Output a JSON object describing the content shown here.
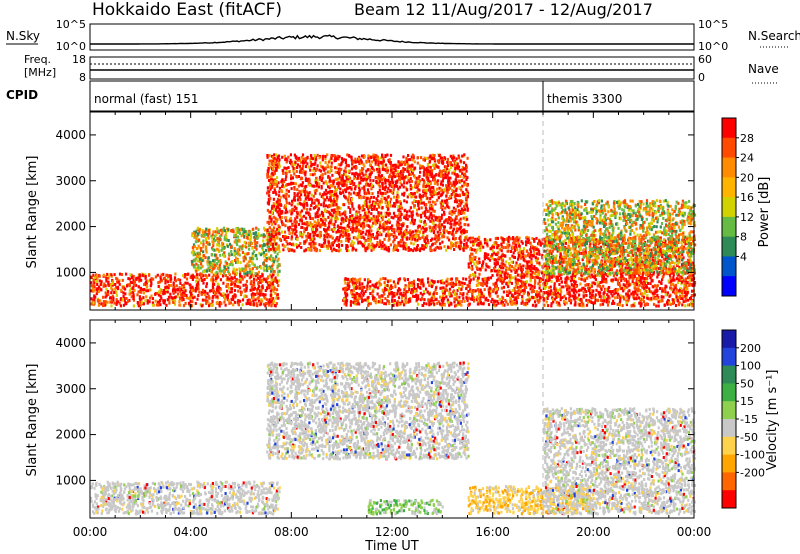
{
  "header": {
    "station": "Hokkaido East (fitACF)",
    "beam_info": "Beam 12 11/Aug/2017 - 12/Aug/2017"
  },
  "noise_panel": {
    "left_label": "N.Sky",
    "right_label": "N.Search",
    "left_ticks": [
      "10^5",
      "10^0"
    ],
    "right_ticks": [
      "10^5",
      "10^0"
    ]
  },
  "freq_panel": {
    "left_label_line1": "Freq.",
    "left_label_line2": "[MHz]",
    "left_ticks": [
      "18",
      "8"
    ],
    "right_label": "Nave",
    "right_ticks": [
      "60",
      "0"
    ]
  },
  "cpid_panel": {
    "label": "CPID",
    "modes": [
      {
        "name": "normal (fast) 151",
        "start_hour": 0
      },
      {
        "name": "themis 3300",
        "start_hour": 18
      }
    ]
  },
  "axes": {
    "ylabel": "Slant Range [km]",
    "yticks": [
      "1000",
      "2000",
      "3000",
      "4000"
    ],
    "xlabel": "Time UT",
    "xticks": [
      "00:00",
      "04:00",
      "08:00",
      "12:00",
      "16:00",
      "20:00",
      "00:00"
    ]
  },
  "power_colorbar": {
    "label": "Power [dB]",
    "ticks": [
      "28",
      "24",
      "20",
      "16",
      "12",
      "8",
      "4"
    ],
    "colors": [
      "#ff0000",
      "#ff4a00",
      "#ff8c00",
      "#ffb400",
      "#d2d200",
      "#66bb44",
      "#2e8b57",
      "#0055cc",
      "#0000ff"
    ]
  },
  "velocity_colorbar": {
    "label": "Velocity [m s⁻¹]",
    "ticks": [
      "200",
      "100",
      "50",
      "15",
      "-15",
      "-50",
      "-100",
      "-200"
    ],
    "colors": [
      "#1a1aa8",
      "#2244dd",
      "#2e8b57",
      "#3cb043",
      "#8fd14f",
      "#c8c8c8",
      "#ffd24d",
      "#ffa500",
      "#ff6600",
      "#ff0000"
    ]
  },
  "chart_data": [
    {
      "type": "heatmap",
      "name": "power",
      "xlim": [
        0,
        24
      ],
      "ylim": [
        180,
        4500
      ],
      "xlabel": "Time UT",
      "ylabel": "Slant Range [km]",
      "units": "dB",
      "regions": [
        {
          "t0": 0,
          "t1": 7.5,
          "r0": 300,
          "r1": 1000,
          "level": "high"
        },
        {
          "t0": 4,
          "t1": 7.5,
          "r0": 1000,
          "r1": 2000,
          "level": "mid"
        },
        {
          "t0": 7,
          "t1": 15,
          "r0": 1500,
          "r1": 3600,
          "level": "high"
        },
        {
          "t0": 10,
          "t1": 15,
          "r0": 300,
          "r1": 900,
          "level": "high"
        },
        {
          "t0": 15,
          "t1": 24,
          "r0": 300,
          "r1": 1800,
          "level": "high"
        },
        {
          "t0": 18,
          "t1": 24,
          "r0": 1000,
          "r1": 2600,
          "level": "mid"
        }
      ]
    },
    {
      "type": "heatmap",
      "name": "velocity",
      "xlim": [
        0,
        24
      ],
      "ylim": [
        180,
        4500
      ],
      "xlabel": "Time UT",
      "ylabel": "Slant Range [km]",
      "units": "m s-1",
      "regions": [
        {
          "t0": 0,
          "t1": 7.5,
          "r0": 300,
          "r1": 1000,
          "level": "low"
        },
        {
          "t0": 7,
          "t1": 15,
          "r0": 1500,
          "r1": 3600,
          "level": "low"
        },
        {
          "t0": 11,
          "t1": 14,
          "r0": 300,
          "r1": 600,
          "level": "positive"
        },
        {
          "t0": 15,
          "t1": 20,
          "r0": 300,
          "r1": 900,
          "level": "negative"
        },
        {
          "t0": 18,
          "t1": 24,
          "r0": 300,
          "r1": 2600,
          "level": "low"
        }
      ]
    }
  ]
}
